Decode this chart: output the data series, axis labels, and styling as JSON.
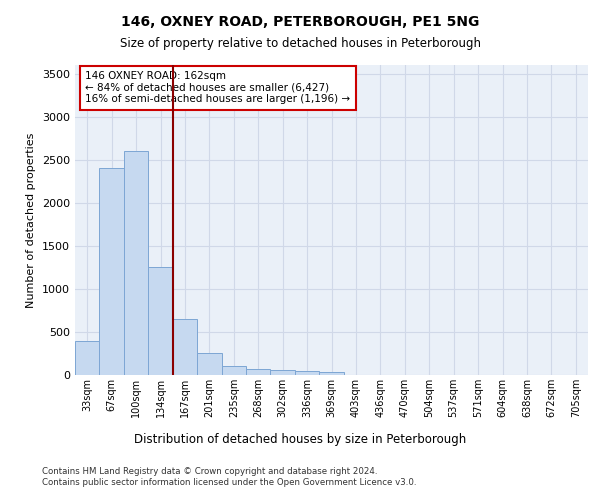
{
  "title1": "146, OXNEY ROAD, PETERBOROUGH, PE1 5NG",
  "title2": "Size of property relative to detached houses in Peterborough",
  "xlabel": "Distribution of detached houses by size in Peterborough",
  "ylabel": "Number of detached properties",
  "bar_labels": [
    "33sqm",
    "67sqm",
    "100sqm",
    "134sqm",
    "167sqm",
    "201sqm",
    "235sqm",
    "268sqm",
    "302sqm",
    "336sqm",
    "369sqm",
    "403sqm",
    "436sqm",
    "470sqm",
    "504sqm",
    "537sqm",
    "571sqm",
    "604sqm",
    "638sqm",
    "672sqm",
    "705sqm"
  ],
  "bar_values": [
    400,
    2400,
    2600,
    1250,
    650,
    250,
    110,
    70,
    55,
    45,
    35,
    0,
    0,
    0,
    0,
    0,
    0,
    0,
    0,
    0,
    0
  ],
  "bar_color": "#c6d9f0",
  "bar_edge_color": "#7da6d4",
  "vline_color": "#8b0000",
  "annotation_text": "146 OXNEY ROAD: 162sqm\n← 84% of detached houses are smaller (6,427)\n16% of semi-detached houses are larger (1,196) →",
  "annotation_box_color": "#ffffff",
  "annotation_box_edge": "#cc0000",
  "ylim": [
    0,
    3600
  ],
  "yticks": [
    0,
    500,
    1000,
    1500,
    2000,
    2500,
    3000,
    3500
  ],
  "footer": "Contains HM Land Registry data © Crown copyright and database right 2024.\nContains public sector information licensed under the Open Government Licence v3.0.",
  "bg_color": "#ffffff",
  "plot_bg_color": "#eaf0f8",
  "grid_color": "#d0d8e8"
}
